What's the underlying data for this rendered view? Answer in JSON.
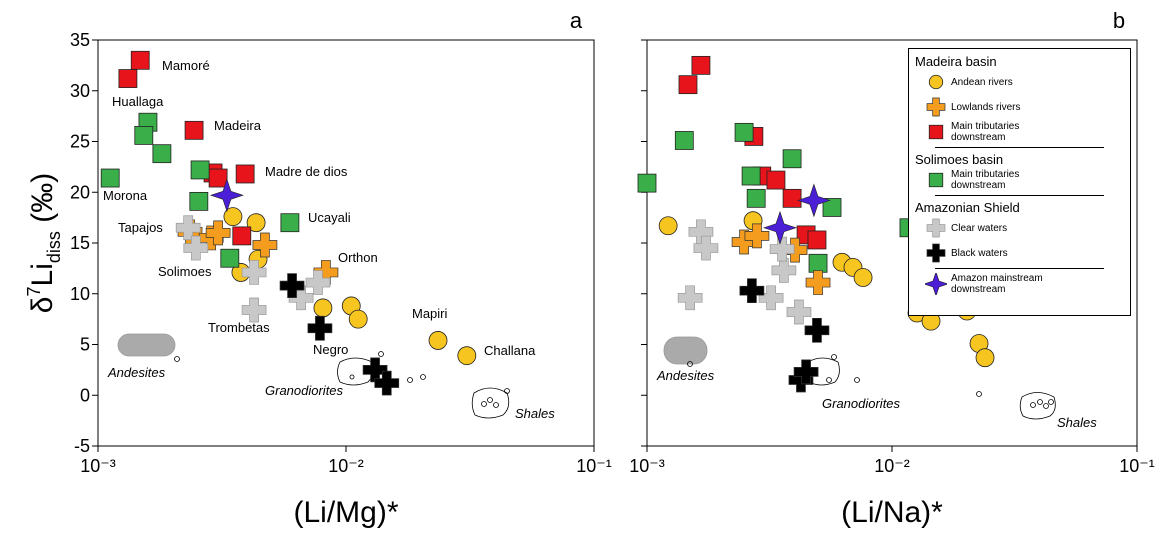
{
  "chart_data": [
    {
      "type": "scatter",
      "panel_label": "a",
      "xscale": "log",
      "xlim": [
        0.001,
        0.1
      ],
      "xticks": [
        {
          "value": 0.001,
          "label": "10⁻³"
        },
        {
          "value": 0.01,
          "label": "10⁻²"
        },
        {
          "value": 0.1,
          "label": "10⁻¹"
        }
      ],
      "ylim": [
        -5,
        35
      ],
      "yticks": [
        -5,
        0,
        5,
        10,
        15,
        20,
        25,
        30,
        35
      ],
      "ytick_labels": true,
      "xlabel": "(Li/Mg)*",
      "ylabel": {
        "main": "δ",
        "sup": "7",
        "base": "Li",
        "sub": "diss",
        "unit": " (‰)"
      },
      "annotations": [
        "Mamoré",
        "Huallaga",
        "Madeira",
        "Madre de dios",
        "Morona",
        "Ucayali",
        "Tapajos",
        "Orthon",
        "Solimoes",
        "Mapiri",
        "Trombetas",
        "Negro",
        "Challana"
      ],
      "rock_labels": [
        "Andesites",
        "Granodiorites",
        "Shales"
      ],
      "series": [
        {
          "marker": "circle",
          "color": "#f7c520",
          "x": [
            0.0035,
            0.00434,
            0.00377,
            0.00442,
            0.0105,
            0.0112,
            0.0235,
            0.0307,
            0.00807
          ],
          "values": [
            17.6,
            17.0,
            12.1,
            13.4,
            8.8,
            7.5,
            5.4,
            3.9,
            8.6
          ]
        },
        {
          "marker": "plus",
          "color": "#f39c1e",
          "x": [
            0.00235,
            0.00286,
            0.00305,
            0.00471,
            0.0083
          ],
          "values": [
            16.1,
            15.5,
            16.0,
            14.8,
            12.1
          ]
        },
        {
          "marker": "square",
          "color": "#e8141b",
          "x": [
            0.00132,
            0.00148,
            0.00244,
            0.00291,
            0.00305,
            0.00392,
            0.0038
          ],
          "values": [
            31.2,
            33.0,
            26.1,
            21.9,
            21.4,
            21.8,
            15.7
          ]
        },
        {
          "marker": "square",
          "color": "#3aae49",
          "x": [
            0.00112,
            0.00159,
            0.00153,
            0.00181,
            0.00258,
            0.00255,
            0.00594,
            0.0034
          ],
          "values": [
            21.4,
            26.9,
            25.6,
            23.8,
            22.2,
            19.1,
            17.0,
            13.5
          ]
        },
        {
          "marker": "plus",
          "color": "#c8c8c8",
          "x": [
            0.00231,
            0.00248,
            0.00426,
            0.00771,
            0.00659,
            0.00426
          ],
          "values": [
            16.5,
            14.5,
            12.1,
            11.1,
            9.6,
            8.4
          ]
        },
        {
          "marker": "plus",
          "color": "#000000",
          "x": [
            0.00606,
            0.00785,
            0.0131,
            0.0146
          ],
          "values": [
            10.8,
            6.6,
            2.5,
            1.2
          ]
        },
        {
          "marker": "star",
          "color": "#4b1fd6",
          "x": [
            0.00331
          ],
          "values": [
            19.7
          ]
        }
      ]
    },
    {
      "type": "scatter",
      "panel_label": "b",
      "xscale": "log",
      "xlim": [
        0.001,
        0.1
      ],
      "xticks": [
        {
          "value": 0.001,
          "label": "10⁻³"
        },
        {
          "value": 0.01,
          "label": "10⁻²"
        },
        {
          "value": 0.1,
          "label": "10⁻¹"
        }
      ],
      "ylim": [
        -5,
        35
      ],
      "yticks": [
        -5,
        0,
        5,
        10,
        15,
        20,
        25,
        30,
        35
      ],
      "ytick_labels": false,
      "xlabel": "(Li/Na)*",
      "rock_labels": [
        "Andesites",
        "Granodiorites",
        "Shales"
      ],
      "groups": [
        {
          "title": "Madeira basin",
          "series": [
            {
              "name": "Andean rivers",
              "marker": "circle",
              "color": "#f7c520",
              "x": [
                0.00122,
                0.00271,
                0.00625,
                0.00693,
                0.00762,
                0.01265,
                0.01443,
                0.02023,
                0.02266,
                0.02397
              ],
              "values": [
                16.7,
                17.2,
                13.1,
                12.6,
                11.6,
                8.1,
                7.3,
                8.3,
                5.1,
                3.7
              ]
            },
            {
              "name": "Lowlands rivers",
              "marker": "plus",
              "color": "#f39c1e",
              "x": [
                0.00249,
                0.00281,
                0.00402,
                0.00499
              ],
              "values": [
                15.1,
                15.7,
                14.3,
                11.1
              ]
            },
            {
              "name": "Main tributaries downstream",
              "marker": "square",
              "color": "#e8141b",
              "x": [
                0.00147,
                0.00166,
                0.00273,
                0.00294,
                0.00336,
                0.00391,
                0.00446,
                0.00494
              ],
              "values": [
                30.6,
                32.5,
                25.5,
                21.6,
                21.2,
                19.4,
                15.8,
                15.3
              ]
            }
          ]
        },
        {
          "title": "Solimoes basin",
          "series": [
            {
              "name": "Main tributaries downstream",
              "marker": "square",
              "color": "#3aae49",
              "x": [
                0.001,
                0.00142,
                0.00249,
                0.00266,
                0.00279,
                0.00391,
                0.00569,
                0.00499,
                0.01173
              ],
              "values": [
                20.9,
                25.1,
                25.9,
                21.6,
                19.4,
                23.3,
                18.5,
                13.0,
                16.5
              ]
            }
          ]
        },
        {
          "title": "Amazonian Shield",
          "series": [
            {
              "name": "Clear waters",
              "marker": "plus",
              "color": "#c8c8c8",
              "x": [
                0.00166,
                0.00174,
                0.0015,
                0.00321,
                0.00362,
                0.00356,
                0.00417
              ],
              "values": [
                16.1,
                14.5,
                9.6,
                9.6,
                12.3,
                14.4,
                8.2
              ]
            },
            {
              "name": "Black waters",
              "marker": "plus",
              "color": "#000000",
              "x": [
                0.00268,
                0.00494,
                0.00425,
                0.00446
              ],
              "values": [
                10.3,
                6.4,
                1.5,
                2.3
              ]
            }
          ]
        },
        {
          "title": null,
          "series": [
            {
              "name": "Amazon mainstream downstream",
              "marker": "star",
              "color": "#4b1fd6",
              "x": [
                0.00349,
                0.0048
              ],
              "values": [
                16.5,
                19.2
              ]
            }
          ]
        }
      ]
    }
  ]
}
